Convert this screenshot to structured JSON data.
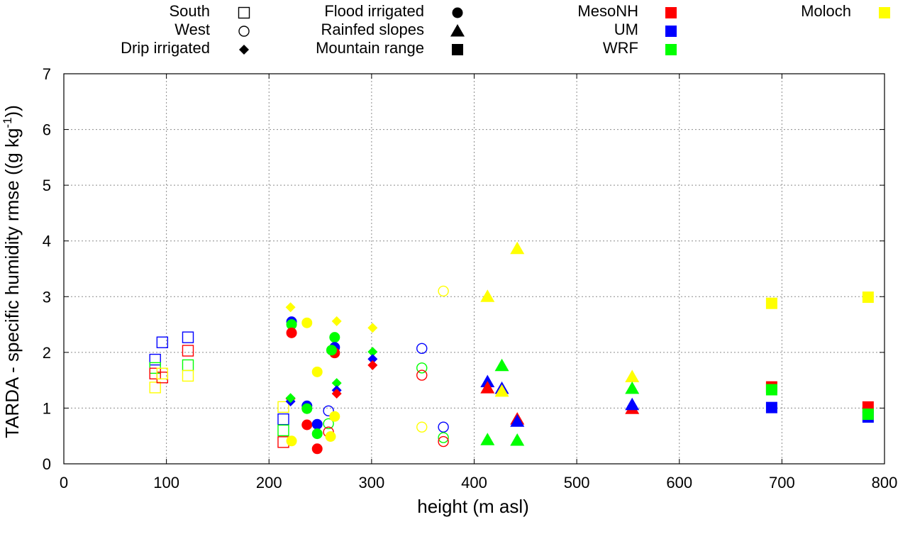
{
  "chart_data": {
    "type": "scatter",
    "xlabel": "height (m asl)",
    "ylabel_main": "TARDA - specific humidity rmse ((g kg",
    "ylabel_sup": "-1",
    "ylabel_end": "))",
    "xlim": [
      0,
      800
    ],
    "ylim": [
      0,
      7
    ],
    "x_ticks": [
      0,
      100,
      200,
      300,
      400,
      500,
      600,
      700,
      800
    ],
    "y_ticks": [
      0,
      1,
      2,
      3,
      4,
      5,
      6,
      7
    ],
    "grid": true,
    "legend": {
      "categories": [
        {
          "name": "South",
          "shape": "square",
          "filled": false
        },
        {
          "name": "West",
          "shape": "circle",
          "filled": false
        },
        {
          "name": "Drip irrigated",
          "shape": "diamond",
          "filled": true
        },
        {
          "name": "Flood irrigated",
          "shape": "circle",
          "filled": true
        },
        {
          "name": "Rainfed slopes",
          "shape": "triangle",
          "filled": true
        },
        {
          "name": "Mountain range",
          "shape": "square",
          "filled": true
        }
      ],
      "models": [
        {
          "name": "MesoNH",
          "color": "#ff0000"
        },
        {
          "name": "UM",
          "color": "#0000ff"
        },
        {
          "name": "WRF",
          "color": "#00ff00"
        },
        {
          "name": "Moloch",
          "color": "#ffff00"
        }
      ]
    },
    "points": [
      {
        "category": "South",
        "model": "UM",
        "x": 89,
        "y": 1.87
      },
      {
        "category": "South",
        "model": "WRF",
        "x": 89,
        "y": 1.72
      },
      {
        "category": "South",
        "model": "MesoNH",
        "x": 89,
        "y": 1.62
      },
      {
        "category": "South",
        "model": "Moloch",
        "x": 89,
        "y": 1.37
      },
      {
        "category": "South",
        "model": "UM",
        "x": 96,
        "y": 2.18
      },
      {
        "category": "South",
        "model": "MesoNH",
        "x": 96,
        "y": 1.55
      },
      {
        "category": "South",
        "model": "Moloch",
        "x": 96,
        "y": 1.62
      },
      {
        "category": "South",
        "model": "UM",
        "x": 121,
        "y": 2.27
      },
      {
        "category": "South",
        "model": "MesoNH",
        "x": 121,
        "y": 2.03
      },
      {
        "category": "South",
        "model": "WRF",
        "x": 121,
        "y": 1.77
      },
      {
        "category": "South",
        "model": "Moloch",
        "x": 121,
        "y": 1.58
      },
      {
        "category": "South",
        "model": "Moloch",
        "x": 214,
        "y": 1.02
      },
      {
        "category": "South",
        "model": "UM",
        "x": 214,
        "y": 0.8
      },
      {
        "category": "South",
        "model": "WRF",
        "x": 214,
        "y": 0.6
      },
      {
        "category": "South",
        "model": "MesoNH",
        "x": 214,
        "y": 0.39
      },
      {
        "category": "West",
        "model": "UM",
        "x": 258,
        "y": 0.95
      },
      {
        "category": "West",
        "model": "WRF",
        "x": 258,
        "y": 0.72
      },
      {
        "category": "West",
        "model": "MesoNH",
        "x": 258,
        "y": 0.57
      },
      {
        "category": "West",
        "model": "UM",
        "x": 349,
        "y": 2.07
      },
      {
        "category": "West",
        "model": "WRF",
        "x": 349,
        "y": 1.72
      },
      {
        "category": "West",
        "model": "MesoNH",
        "x": 349,
        "y": 1.59
      },
      {
        "category": "West",
        "model": "Moloch",
        "x": 349,
        "y": 0.66
      },
      {
        "category": "West",
        "model": "Moloch",
        "x": 370,
        "y": 3.1
      },
      {
        "category": "West",
        "model": "UM",
        "x": 370,
        "y": 0.66
      },
      {
        "category": "West",
        "model": "WRF",
        "x": 370,
        "y": 0.47
      },
      {
        "category": "West",
        "model": "MesoNH",
        "x": 370,
        "y": 0.4
      },
      {
        "category": "Drip irrigated",
        "model": "Moloch",
        "x": 221,
        "y": 2.81
      },
      {
        "category": "Drip irrigated",
        "model": "MesoNH",
        "x": 221,
        "y": 1.17
      },
      {
        "category": "Drip irrigated",
        "model": "UM",
        "x": 221,
        "y": 1.12
      },
      {
        "category": "Drip irrigated",
        "model": "WRF",
        "x": 221,
        "y": 1.18
      },
      {
        "category": "Drip irrigated",
        "model": "Moloch",
        "x": 266,
        "y": 2.56
      },
      {
        "category": "Drip irrigated",
        "model": "WRF",
        "x": 266,
        "y": 1.45
      },
      {
        "category": "Drip irrigated",
        "model": "UM",
        "x": 266,
        "y": 1.32
      },
      {
        "category": "Drip irrigated",
        "model": "MesoNH",
        "x": 266,
        "y": 1.26
      },
      {
        "category": "Drip irrigated",
        "model": "Moloch",
        "x": 301,
        "y": 2.44
      },
      {
        "category": "Drip irrigated",
        "model": "WRF",
        "x": 301,
        "y": 2.01
      },
      {
        "category": "Drip irrigated",
        "model": "UM",
        "x": 301,
        "y": 1.88
      },
      {
        "category": "Drip irrigated",
        "model": "MesoNH",
        "x": 301,
        "y": 1.77
      },
      {
        "category": "Flood irrigated",
        "model": "UM",
        "x": 222,
        "y": 2.55
      },
      {
        "category": "Flood irrigated",
        "model": "WRF",
        "x": 222,
        "y": 2.5
      },
      {
        "category": "Flood irrigated",
        "model": "MesoNH",
        "x": 222,
        "y": 2.35
      },
      {
        "category": "Flood irrigated",
        "model": "Moloch",
        "x": 222,
        "y": 0.41
      },
      {
        "category": "Flood irrigated",
        "model": "Moloch",
        "x": 237,
        "y": 2.53
      },
      {
        "category": "Flood irrigated",
        "model": "UM",
        "x": 237,
        "y": 1.04
      },
      {
        "category": "Flood irrigated",
        "model": "WRF",
        "x": 237,
        "y": 0.99
      },
      {
        "category": "Flood irrigated",
        "model": "MesoNH",
        "x": 237,
        "y": 0.7
      },
      {
        "category": "Flood irrigated",
        "model": "Moloch",
        "x": 247,
        "y": 1.65
      },
      {
        "category": "Flood irrigated",
        "model": "UM",
        "x": 247,
        "y": 0.71
      },
      {
        "category": "Flood irrigated",
        "model": "WRF",
        "x": 247,
        "y": 0.54
      },
      {
        "category": "Flood irrigated",
        "model": "MesoNH",
        "x": 247,
        "y": 0.27
      },
      {
        "category": "Flood irrigated",
        "model": "Moloch",
        "x": 260,
        "y": 0.49
      },
      {
        "category": "Flood irrigated",
        "model": "WRF",
        "x": 264,
        "y": 2.27
      },
      {
        "category": "Flood irrigated",
        "model": "UM",
        "x": 264,
        "y": 2.09
      },
      {
        "category": "Flood irrigated",
        "model": "MesoNH",
        "x": 264,
        "y": 1.99
      },
      {
        "category": "Flood irrigated",
        "model": "WRF",
        "x": 261,
        "y": 2.04
      },
      {
        "category": "Flood irrigated",
        "model": "Moloch",
        "x": 264,
        "y": 0.85
      },
      {
        "category": "Rainfed slopes",
        "model": "Moloch",
        "x": 413,
        "y": 3.0
      },
      {
        "category": "Rainfed slopes",
        "model": "UM",
        "x": 413,
        "y": 1.47
      },
      {
        "category": "Rainfed slopes",
        "model": "MesoNH",
        "x": 413,
        "y": 1.36
      },
      {
        "category": "Rainfed slopes",
        "model": "WRF",
        "x": 413,
        "y": 0.43
      },
      {
        "category": "Rainfed slopes",
        "model": "WRF",
        "x": 427,
        "y": 1.76
      },
      {
        "category": "Rainfed slopes",
        "model": "UM",
        "x": 427,
        "y": 1.35
      },
      {
        "category": "Rainfed slopes",
        "model": "Moloch",
        "x": 427,
        "y": 1.3
      },
      {
        "category": "Rainfed slopes",
        "model": "Moloch",
        "x": 442,
        "y": 3.86
      },
      {
        "category": "Rainfed slopes",
        "model": "MesoNH",
        "x": 442,
        "y": 0.8
      },
      {
        "category": "Rainfed slopes",
        "model": "UM",
        "x": 442,
        "y": 0.76
      },
      {
        "category": "Rainfed slopes",
        "model": "WRF",
        "x": 442,
        "y": 0.42
      },
      {
        "category": "Rainfed slopes",
        "model": "Moloch",
        "x": 554,
        "y": 1.56
      },
      {
        "category": "Rainfed slopes",
        "model": "WRF",
        "x": 554,
        "y": 1.35
      },
      {
        "category": "Rainfed slopes",
        "model": "MesoNH",
        "x": 554,
        "y": 0.99
      },
      {
        "category": "Rainfed slopes",
        "model": "UM",
        "x": 554,
        "y": 1.06
      },
      {
        "category": "Mountain range",
        "model": "Moloch",
        "x": 690,
        "y": 2.88
      },
      {
        "category": "Mountain range",
        "model": "MesoNH",
        "x": 690,
        "y": 1.38
      },
      {
        "category": "Mountain range",
        "model": "WRF",
        "x": 690,
        "y": 1.33
      },
      {
        "category": "Mountain range",
        "model": "UM",
        "x": 690,
        "y": 1.01
      },
      {
        "category": "Mountain range",
        "model": "Moloch",
        "x": 784,
        "y": 2.99
      },
      {
        "category": "Mountain range",
        "model": "MesoNH",
        "x": 784,
        "y": 1.02
      },
      {
        "category": "Mountain range",
        "model": "UM",
        "x": 784,
        "y": 0.84
      },
      {
        "category": "Mountain range",
        "model": "WRF",
        "x": 784,
        "y": 0.89
      }
    ]
  }
}
